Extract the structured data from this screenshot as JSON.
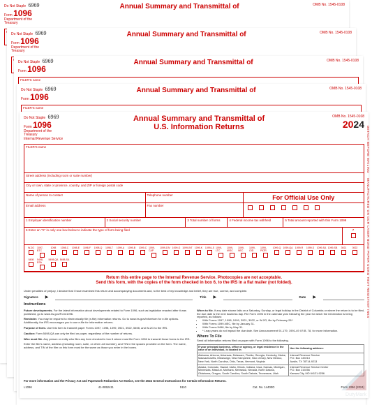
{
  "colors": {
    "irs_red": "#cc0000",
    "text_black": "#222222",
    "background": "#ffffff",
    "watermark_grey": "#9aa7b0"
  },
  "typography": {
    "title_fontsize": 11,
    "form_num_fontsize": 12,
    "year_fontsize": 14,
    "body_fontsize": 4.5,
    "instructions_fontsize": 4
  },
  "do_not_staple": "Do Not Staple",
  "handwritten": "6969",
  "form_word": "Form",
  "form_number": "1096",
  "title_short": "Annual Summary and Transmittal of",
  "title_full_l1": "Annual Summary and Transmittal of",
  "title_full_l2": "U.S. Information Returns",
  "omb": "OMB No. 1545-0108",
  "year": "2024",
  "dept": "Department of the Treasury",
  "irs": "Internal Revenue Service",
  "filer_label": "FILER'S name",
  "street_label": "Street address (including room or suite number)",
  "citystate_label": "City or town, state or province, country, and ZIP or foreign postal code",
  "contact_label": "Name of person to contact",
  "telephone_label": "Telephone number",
  "email_label": "Email address",
  "fax_label": "Fax number",
  "official": "For Official Use Only",
  "box1": "1 Employer identification number",
  "box2": "2 Social security number",
  "box3": "3 Total number of forms",
  "box4": "4 Federal income tax withheld",
  "box5": "5 Total amount reported with this Form 1099",
  "box6": "6 Enter an \"X\" in only one box below to indicate the type of form being filed",
  "box7": "7",
  "checkbox_labels": [
    "W-2G",
    "1097-BTC",
    "1098",
    "1098-C",
    "1098-E",
    "1098-F",
    "1098-Q",
    "1098-T",
    "1099-A",
    "1099-B",
    "1099-C",
    "1099-CAP",
    "1099-DIV",
    "1099-G",
    "1099-INT",
    "1099-K",
    "1099-LS",
    "1099-LTC",
    "1099-MISC",
    "1099-NEC",
    "1099-OID",
    "1099-PATR",
    "1099-Q",
    "1099-QA",
    "1099-R",
    "1099-S",
    "1099-SA",
    "1099-SB",
    "3921",
    "3922",
    "5498",
    "5498-ESA",
    "5498-QA",
    "5498-SA"
  ],
  "return_line1": "Return this entire page to the Internal Revenue Service. Photocopies are not acceptable.",
  "return_line2": "Send this form, with the copies of the form checked in box 6, to the IRS in a flat mailer (not folded).",
  "penalties": "Under penalties of perjury, I declare that I have examined this return and accompanying documents and, to the best of my knowledge and belief, they are true, correct, and complete.",
  "signature": "Signature",
  "title_lbl": "Title",
  "date_lbl": "Date",
  "instructions_hd": "Instructions",
  "future_hd": "Future developments.",
  "future_text": "For the latest information about developments related to Form 1096, such as legislation enacted after it was published, go to www.irs.gov/Form1096.",
  "reminder_hd": "Reminder.",
  "reminder_text": "You may be required to electronically file (e-file) information returns. Go to www.irs.gov/inforeturn for e-file options. Additionally, the IRS encourages you to use e-file for information returns.",
  "purpose_hd": "Purpose of form.",
  "purpose_text": "Use this form to transmit paper Forms 1097, 1098, 1099, 3921, 3922, 5498, and W-2G to the IRS.",
  "caution_hd": "Caution:",
  "caution_text": "Form 5498-QA can only be filed on paper, regardless of the number of returns.",
  "who_hd": "Who must file.",
  "who_text": "Any person or entity who files any form checked in box 6 above must file Form 1096 to transmit those forms to the IRS.",
  "filer_info_text": "Enter the filer's name, address (including room, suite, or other unit number), and TIN in the spaces provided on the form. The name, address, and TIN of the filer on this form must be the same as those you enter in the boxes.",
  "when_hd": "When to file.",
  "when_text": "If any date shown falls on a Saturday, Sunday, or legal holiday in the District of Columbia or where the return is to be filed, the due date is the next business day. File Form 1096 in the calendar year following the year for which the information is being reported, as follows:",
  "when_bullets": [
    "With Forms 1097, 1098, 1099, 3921, 3922, or W-2G, file by February 28 *",
    "With Forms 1099-NEC, file by January 31.",
    "With Forms 5498, file by May 31.",
    "* Leap years do not impact the due date. See Announcement 91-179, 1991-49 I.R.B. 78, for more information."
  ],
  "where_hd": "Where To File",
  "where_text": "Send all information returns filed on paper with Form 1096 to the following.",
  "where_col1_hd": "If your principal business, office or agency, or legal residence in the case of an individual, is located in:",
  "where_col2_hd": "Use the following address:",
  "where_states": "Alabama, Arizona, Arkansas, Delaware, Florida, Georgia, Kentucky, Maine, Massachusetts, Mississippi, New Hampshire, New Jersey, New Mexico, New York, North Carolina, Ohio, Texas, Vermont, Virginia",
  "where_addr": "Internal Revenue Service\nP.O. Box 149213\nAustin, TX 78714-9213",
  "where_states2": "Alaska, Colorado, Hawaii, Idaho, Illinois, Indiana, Iowa, Kansas, Michigan, Minnesota, Missouri, Montana, Nebraska, Nevada, North Dakota, Oklahoma, Oregon, South Carolina, South Dakota, Tennessee, Utah",
  "where_addr2": "Internal Revenue Service Center\nP.O. Box 219256\nKansas City, MO 64121-9256",
  "moreinfo": "For more information and the Privacy Act and Paperwork Reduction Act Notice, see the 2024 General Instructions for Certain Information Returns.",
  "moreinfo_short": "For more information, see the 2024 General",
  "cat": "Cat. No. 14400O",
  "formfoot": "Form 1096 (2024)",
  "sidetext1": "DETACH BEFORE MAILING",
  "sidetext2": "MANUFACTURED ON OCR LASER BOND PAPER USING HEAT RESISTANT INKS",
  "l1096": "L1096",
  "code": "41-0852411",
  "code2": "5110",
  "watermark": "DutyMark"
}
